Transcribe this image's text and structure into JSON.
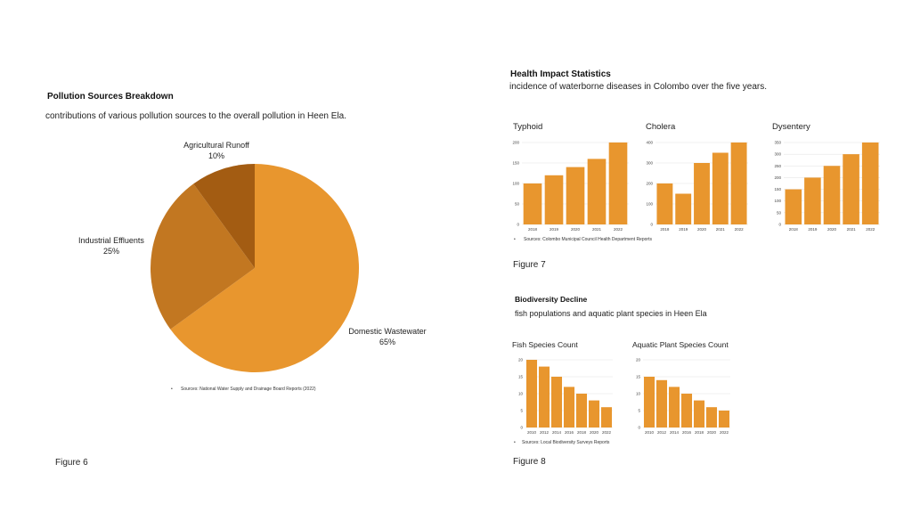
{
  "left": {
    "heading": "Pollution Sources Breakdown",
    "subtitle": "contributions of various pollution sources to the overall pollution in Heen Ela.",
    "source": "Sources: National Water Supply and Drainage Board Reports (2022)",
    "figure": "Figure 6"
  },
  "health": {
    "heading": "Health Impact Statistics",
    "subtitle": "incidence of waterborne diseases in Colombo over the  five years.",
    "source": "Sources: Colombo Municipal Council Health Department Reports",
    "figure": "Figure 7"
  },
  "bio": {
    "heading": "Biodiversity Decline",
    "subtitle": "fish populations and aquatic plant species in Heen Ela",
    "source": "Sources: Local Biodiversity Surveys Reports",
    "figure": "Figure 8"
  },
  "colors": {
    "bar": "#e8962e",
    "grid": "#e6e6e6",
    "pie": [
      "#e8962e",
      "#c27721",
      "#a35c12"
    ]
  },
  "chart_data": [
    {
      "id": "pollution",
      "type": "pie",
      "title": "",
      "labels": [
        "Domestic Wastewater",
        "Industrial Effluents",
        "Agricultural Runoff"
      ],
      "values": [
        65,
        25,
        10
      ],
      "pct_labels": [
        "65%",
        "25%",
        "10%"
      ]
    },
    {
      "id": "typhoid",
      "type": "bar",
      "title": "Typhoid",
      "categories": [
        "2018",
        "2019",
        "2020",
        "2021",
        "2022"
      ],
      "values": [
        100,
        120,
        140,
        160,
        200
      ],
      "ylim": [
        0,
        200
      ],
      "yticks": [
        0,
        50,
        100,
        150,
        200
      ]
    },
    {
      "id": "cholera",
      "type": "bar",
      "title": "Cholera",
      "categories": [
        "2018",
        "2019",
        "2020",
        "2021",
        "2022"
      ],
      "values": [
        200,
        150,
        300,
        350,
        400
      ],
      "ylim": [
        0,
        400
      ],
      "yticks": [
        0,
        100,
        200,
        300,
        400
      ]
    },
    {
      "id": "dysentery",
      "type": "bar",
      "title": "Dysentery",
      "categories": [
        "2018",
        "2019",
        "2020",
        "2021",
        "2022"
      ],
      "values": [
        150,
        200,
        250,
        300,
        350
      ],
      "ylim": [
        0,
        350
      ],
      "yticks": [
        0,
        50,
        100,
        150,
        200,
        250,
        300,
        350
      ]
    },
    {
      "id": "fish",
      "type": "bar",
      "title": "Fish Species Count",
      "categories": [
        "2010",
        "2012",
        "2014",
        "2016",
        "2018",
        "2020",
        "2022"
      ],
      "values": [
        20,
        18,
        15,
        12,
        10,
        8,
        6
      ],
      "ylim": [
        0,
        20
      ],
      "yticks": [
        0,
        5,
        10,
        15,
        20
      ]
    },
    {
      "id": "plants",
      "type": "bar",
      "title": "Aquatic Plant Species Count",
      "categories": [
        "2010",
        "2012",
        "2014",
        "2016",
        "2018",
        "2020",
        "2022"
      ],
      "values": [
        15,
        14,
        12,
        10,
        8,
        6,
        5
      ],
      "ylim": [
        0,
        20
      ],
      "yticks": [
        0,
        5,
        10,
        15,
        20
      ]
    }
  ]
}
